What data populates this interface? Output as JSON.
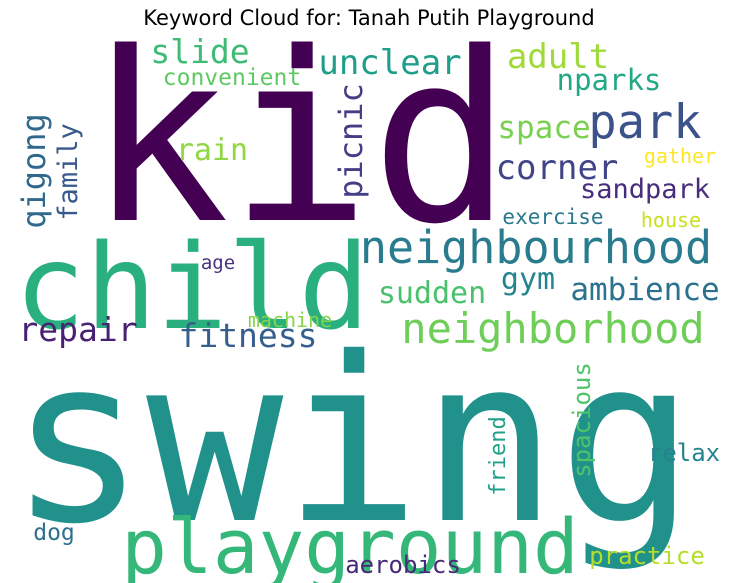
{
  "title": "Keyword Cloud for: Tanah Putih Playground",
  "palette": "viridis",
  "words": [
    {
      "key": "kid",
      "text": "kid",
      "color": "#440154"
    },
    {
      "key": "swing",
      "text": "swing",
      "color": "#21918c"
    },
    {
      "key": "child",
      "text": "child",
      "color": "#2ab07f"
    },
    {
      "key": "playground",
      "text": "playground",
      "color": "#35b779"
    },
    {
      "key": "neighbourhood",
      "text": "neighbourhood",
      "color": "#287c8e"
    },
    {
      "key": "neighborhood",
      "text": "neighborhood",
      "color": "#6ece58"
    },
    {
      "key": "park",
      "text": "park",
      "color": "#3b528b"
    },
    {
      "key": "unclear",
      "text": "unclear",
      "color": "#1f9e89"
    },
    {
      "key": "adult",
      "text": "adult",
      "color": "#a0da39"
    },
    {
      "key": "nparks",
      "text": "nparks",
      "color": "#22a884"
    },
    {
      "key": "slide",
      "text": "slide",
      "color": "#3fbc73"
    },
    {
      "key": "convenient",
      "text": "convenient",
      "color": "#5ec962"
    },
    {
      "key": "space",
      "text": "space",
      "color": "#7ad151"
    },
    {
      "key": "picnic",
      "text": "picnic",
      "color": "#433e85"
    },
    {
      "key": "rain",
      "text": "rain",
      "color": "#90d743"
    },
    {
      "key": "corner",
      "text": "corner",
      "color": "#414487"
    },
    {
      "key": "gather",
      "text": "gather",
      "color": "#fde725"
    },
    {
      "key": "sandpark",
      "text": "sandpark",
      "color": "#472d7b"
    },
    {
      "key": "qigong",
      "text": "qigong",
      "color": "#31688e"
    },
    {
      "key": "family",
      "text": "family",
      "color": "#38598c"
    },
    {
      "key": "exercise",
      "text": "exercise",
      "color": "#2a788e"
    },
    {
      "key": "house",
      "text": "house",
      "color": "#c8e020"
    },
    {
      "key": "age",
      "text": "age",
      "color": "#46327e"
    },
    {
      "key": "gym",
      "text": "gym",
      "color": "#25858e"
    },
    {
      "key": "sudden",
      "text": "sudden",
      "color": "#4ac16d"
    },
    {
      "key": "ambience",
      "text": "ambience",
      "color": "#2c728e"
    },
    {
      "key": "repair",
      "text": "repair",
      "color": "#482173"
    },
    {
      "key": "machine",
      "text": "machine",
      "color": "#84d44b"
    },
    {
      "key": "fitness",
      "text": "fitness",
      "color": "#355f8d"
    },
    {
      "key": "spacious",
      "text": "spacious",
      "color": "#50c46a"
    },
    {
      "key": "relax",
      "text": "relax",
      "color": "#26828e"
    },
    {
      "key": "friend",
      "text": "friend",
      "color": "#1fa188"
    },
    {
      "key": "dog",
      "text": "dog",
      "color": "#2d708e"
    },
    {
      "key": "aerobics",
      "text": "aerobics",
      "color": "#482878"
    },
    {
      "key": "practice",
      "text": "practice",
      "color": "#b5de2b"
    }
  ]
}
